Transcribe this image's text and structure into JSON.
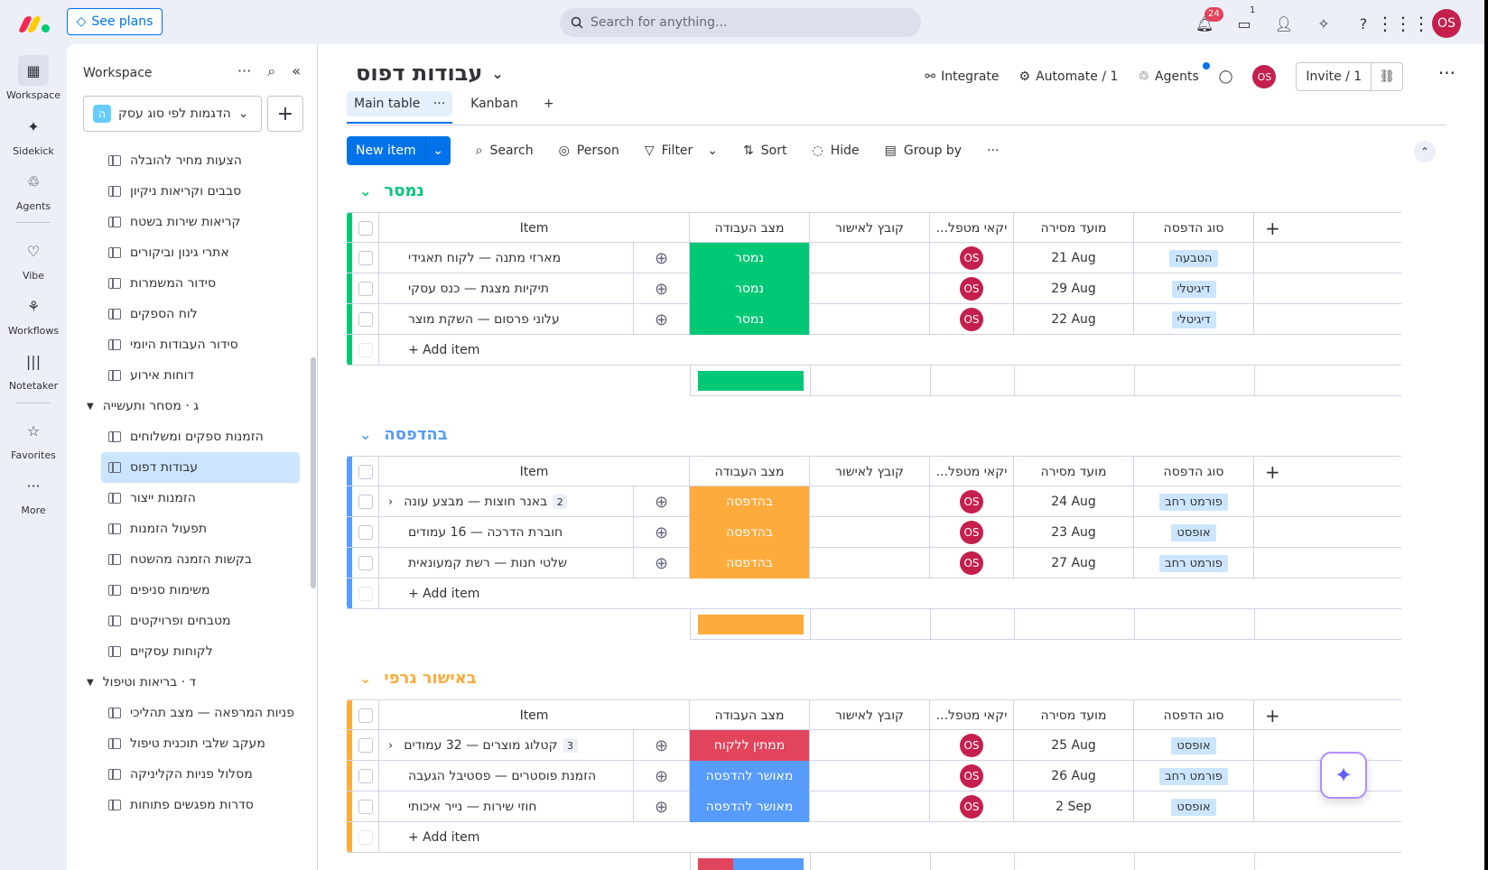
{
  "topbar": {
    "see_plans": "See plans",
    "search_placeholder": "Search for anything...",
    "notifications_count": "24",
    "inbox_count": "1",
    "avatar": "OS"
  },
  "rail": [
    {
      "label": "Workspace",
      "icon": "grid-icon"
    },
    {
      "label": "Sidekick",
      "icon": "sparkle-icon"
    },
    {
      "label": "Agents",
      "icon": "agents-icon"
    },
    {
      "label": "Vibe",
      "icon": "heart-icon"
    },
    {
      "label": "Workflows",
      "icon": "workflows-icon"
    },
    {
      "label": "Notetaker",
      "icon": "notetaker-icon"
    },
    {
      "label": "Favorites",
      "icon": "star-icon"
    },
    {
      "label": "More",
      "icon": "more-icon"
    }
  ],
  "sidebar": {
    "title": "Workspace",
    "workspace_name": "הדגמות לפי סוג עסק",
    "workspace_badge": "ה",
    "items": [
      "הצעות מחיר להובלה",
      "סבבים וקריאות ניקיון",
      "קריאות שירות בשטח",
      "אתרי גינון וביקורים",
      "סידור המשמרות",
      "לוח הספקים",
      "סידור העבודות היומי",
      "דוחות אירוע"
    ],
    "folder_g": "ג · מסחר ותעשייה",
    "items_g": [
      "הזמנות ספקים ומשלוחים",
      "עבודות דפוס",
      "הזמנות ייצור",
      "תפעול הזמנות",
      "בקשות הזמנה מהשטח",
      "משימות סניפים",
      "מטבחים ופרויקטים",
      "לקוחות עסקיים"
    ],
    "folder_d": "ד · בריאות וטיפול",
    "items_d": [
      "פניות המרפאה — מצב תהליכי",
      "מעקב שלבי תוכנית טיפול",
      "מסלול פניות הקליניקה",
      "סדרות מפגשים פתוחות"
    ]
  },
  "board": {
    "title": "עבודות דפוס",
    "integrate": "Integrate",
    "automate": "Automate / 1",
    "agents": "Agents",
    "invite": "Invite / 1",
    "avatar": "OS",
    "tabs": [
      "Main table",
      "Kanban"
    ],
    "tab_add": "+",
    "toolbar": {
      "new_item": "New item",
      "search": "Search",
      "person": "Person",
      "filter": "Filter",
      "sort": "Sort",
      "hide": "Hide",
      "group_by": "Group by"
    },
    "columns": {
      "item": "Item",
      "status": "מצב העבודה",
      "file": "קובץ לאישור",
      "owner": "...יקאי מטפל",
      "due": "מועד מסירה",
      "type": "סוג הדפסה",
      "add": "+"
    },
    "add_item": "+ Add item",
    "groups": [
      {
        "title": "נמסר",
        "color": "#00c875",
        "rows": [
          {
            "name": "מארזי מתנה — לקוח תאגידי",
            "sub": "",
            "status": "נמסר",
            "status_color": "#00c875",
            "owner": "OS",
            "due": "21 Aug",
            "type": "הטבעה"
          },
          {
            "name": "תיקיות מצגת — כנס עסקי",
            "sub": "",
            "status": "נמסר",
            "status_color": "#00c875",
            "owner": "OS",
            "due": "29 Aug",
            "type": "דיגיטלי"
          },
          {
            "name": "עלוני פרסום — השקת מוצר",
            "sub": "",
            "status": "נמסר",
            "status_color": "#00c875",
            "owner": "OS",
            "due": "22 Aug",
            "type": "דיגיטלי"
          }
        ]
      },
      {
        "title": "בהדפסה",
        "color": "#579bfc",
        "rows": [
          {
            "name": "באנר חוצות — מבצע עונה",
            "sub": "2",
            "status": "בהדפסה",
            "status_color": "#fdab3d",
            "owner": "OS",
            "due": "24 Aug",
            "type": "פורמט רחב"
          },
          {
            "name": "חוברת הדרכה — 16 עמודים",
            "sub": "",
            "status": "בהדפסה",
            "status_color": "#fdab3d",
            "owner": "OS",
            "due": "23 Aug",
            "type": "אופסט"
          },
          {
            "name": "שלטי חנות — רשת קמעונאית",
            "sub": "",
            "status": "בהדפסה",
            "status_color": "#fdab3d",
            "owner": "OS",
            "due": "27 Aug",
            "type": "פורמט רחב"
          }
        ]
      },
      {
        "title": "באישור גרפי",
        "color": "#fdab3d",
        "rows": [
          {
            "name": "קטלוג מוצרים — 32 עמודים",
            "sub": "3",
            "status": "ממתין ללקוח",
            "status_color": "#e2445c",
            "owner": "OS",
            "due": "25 Aug",
            "type": "אופסט"
          },
          {
            "name": "הזמנת פוסטרים — פסטיבל הגעבה",
            "sub": "",
            "status": "מאושר להדפסה",
            "status_color": "#579bfc",
            "owner": "OS",
            "due": "26 Aug",
            "type": "פורמט רחב"
          },
          {
            "name": "חוזי שירות — נייר איכותי",
            "sub": "",
            "status": "מאושר להדפסה",
            "status_color": "#579bfc",
            "owner": "OS",
            "due": "2 Sep",
            "type": "אופסט"
          }
        ]
      }
    ]
  }
}
